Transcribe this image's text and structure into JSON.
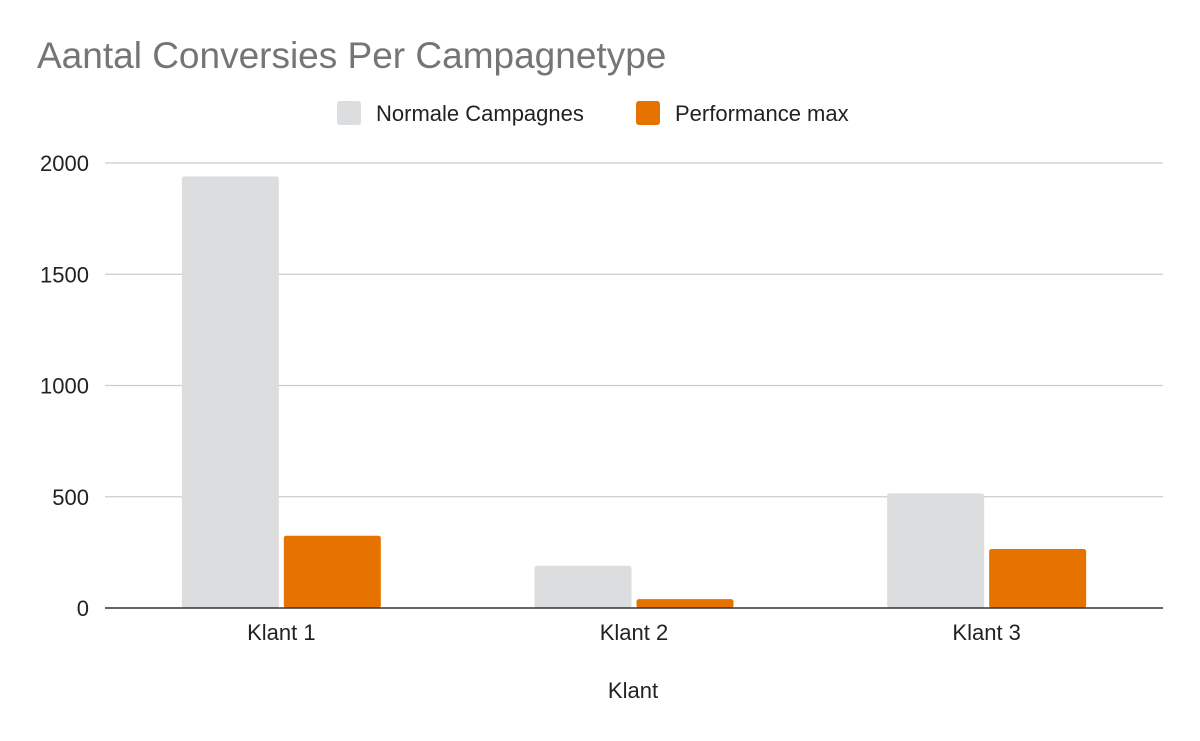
{
  "chart_data": {
    "type": "bar",
    "title": "Aantal Conversies Per Campagnetype",
    "xlabel": "Klant",
    "ylabel": "",
    "categories": [
      "Klant 1",
      "Klant 2",
      "Klant 3"
    ],
    "series": [
      {
        "name": "Normale Campagnes",
        "color": "#dcdddf",
        "values": [
          1940,
          190,
          515
        ]
      },
      {
        "name": "Performance max",
        "color": "#e67300",
        "values": [
          325,
          40,
          265
        ]
      }
    ],
    "ylim": [
      0,
      2000
    ],
    "yticks": [
      0,
      500,
      1000,
      1500,
      2000
    ],
    "grid": true,
    "legend_position": "top-center"
  }
}
